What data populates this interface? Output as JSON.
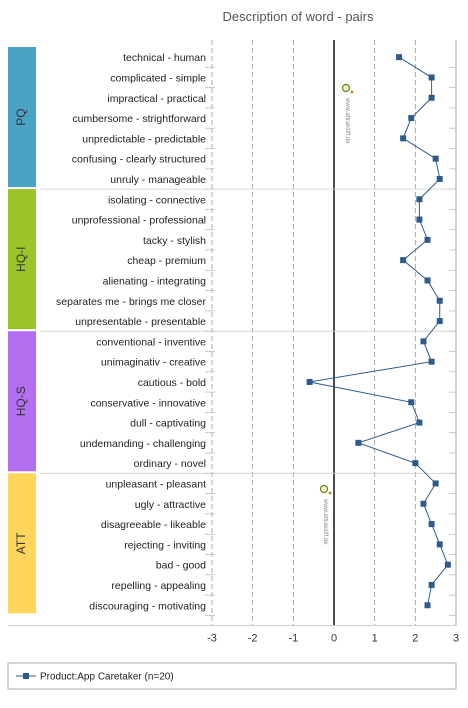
{
  "chart_data": {
    "type": "line",
    "title": "Description of word - pairs",
    "xlim": [
      -3,
      3
    ],
    "x_ticks": [
      "-3",
      "-2",
      "-1",
      "0",
      "1",
      "2",
      "3"
    ],
    "grid": "vertical dashed",
    "legend_position": "bottom-left",
    "series": [
      {
        "name": "Product:App Caretaker (n=20)",
        "color": "#2e5c8a",
        "values": [
          1.6,
          2.4,
          2.4,
          1.9,
          1.7,
          2.5,
          2.6,
          2.1,
          2.1,
          2.3,
          1.7,
          2.3,
          2.6,
          2.6,
          2.2,
          2.4,
          -0.6,
          1.9,
          2.1,
          0.6,
          2.0,
          2.5,
          2.2,
          2.4,
          2.6,
          2.8,
          2.4,
          2.3
        ]
      }
    ],
    "items": [
      "technical - human",
      "complicated - simple",
      "impractical - practical",
      "cumbersome - strightforward",
      "unpredictable - predictable",
      "confusing - clearly structured",
      "unruly - manageable",
      "isolating - connective",
      "unprofessional - professional",
      "tacky - stylish",
      "cheap - premium",
      "alienating - integrating",
      "separates me - brings me closer",
      "unpresentable - presentable",
      "conventional - inventive",
      "unimaginativ - creative",
      "cautious - bold",
      "conservative - innovative",
      "dull - captivating",
      "undemanding - challenging",
      "ordinary - novel",
      "unpleasant - pleasant",
      "ugly - attractive",
      "disagreeable - likeable",
      "rejecting - inviting",
      "bad - good",
      "repelling - appealing",
      "discouraging - motivating"
    ],
    "groups": [
      {
        "label": "PQ",
        "start": 0,
        "count": 7,
        "color": "#4ba3c3"
      },
      {
        "label": "HQ-I",
        "start": 7,
        "count": 7,
        "color": "#9bc42a"
      },
      {
        "label": "HQ-S",
        "start": 14,
        "count": 7,
        "color": "#b36ff0"
      },
      {
        "label": "ATT",
        "start": 21,
        "count": 7,
        "color": "#ffd65c"
      }
    ],
    "watermark": "www.attrakdiff.de"
  }
}
